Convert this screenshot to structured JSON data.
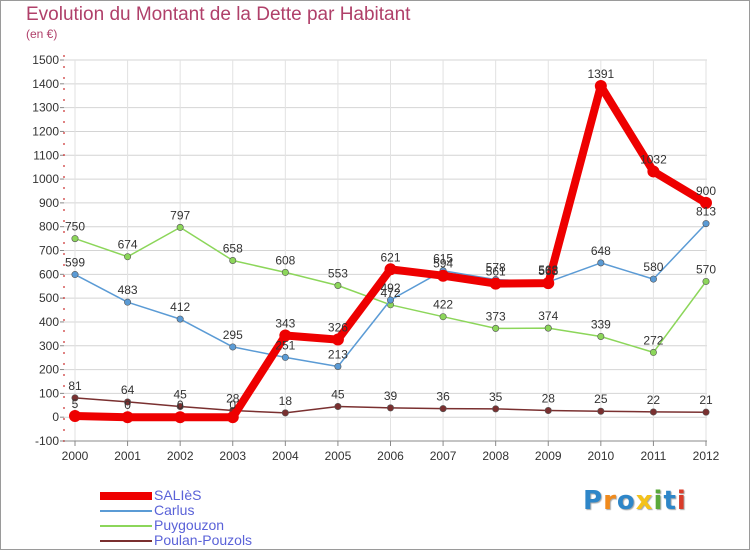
{
  "title": "Evolution du Montant de la Dette par Habitant",
  "subtitle": "(en €)",
  "logo": {
    "text": "Proxiti",
    "colors": [
      "#2e86c8",
      "#f08a1c",
      "#2e86c8",
      "#f4c21a",
      "#59a83a",
      "#2e86c8",
      "#d93c2a"
    ]
  },
  "chart_data": {
    "type": "line",
    "x": [
      "2000",
      "2001",
      "2002",
      "2003",
      "2004",
      "2005",
      "2006",
      "2007",
      "2008",
      "2009",
      "2010",
      "2011",
      "2012"
    ],
    "ylim": [
      -100,
      1500
    ],
    "yticks": [
      -100,
      0,
      100,
      200,
      300,
      400,
      500,
      600,
      700,
      800,
      900,
      1000,
      1100,
      1200,
      1300,
      1400,
      1500
    ],
    "grid": true,
    "legend": "bottom-left",
    "series": [
      {
        "name": "Poulan-Pouzols",
        "color": "#7a3030",
        "values": [
          81,
          64,
          45,
          28,
          18,
          45,
          39,
          36,
          35,
          28,
          25,
          22,
          21
        ],
        "labels": [
          "81",
          "64",
          "45",
          "28",
          "18",
          "45",
          "39",
          "36",
          "35",
          "28",
          "25",
          "22",
          "21"
        ]
      },
      {
        "name": "Puygouzon",
        "color": "#8cd65a",
        "values": [
          750,
          674,
          797,
          658,
          608,
          553,
          472,
          422,
          373,
          374,
          339,
          272,
          570
        ],
        "labels": [
          "750",
          "674",
          "797",
          "658",
          "608",
          "553",
          "472",
          "422",
          "373",
          "374",
          "339",
          "272",
          "570"
        ]
      },
      {
        "name": "Carlus",
        "color": "#5b9bd5",
        "values": [
          599,
          483,
          412,
          295,
          251,
          213,
          492,
          615,
          578,
          568,
          648,
          580,
          813
        ],
        "labels": [
          "599",
          "483",
          "412",
          "295",
          "251",
          "213",
          "492",
          "615",
          "578",
          "568",
          "648",
          "580",
          "813"
        ]
      },
      {
        "name": "SALIèS",
        "color": "#ee0000",
        "values": [
          5,
          0,
          0,
          0,
          343,
          326,
          621,
          594,
          561,
          563,
          1391,
          1032,
          900
        ],
        "labels": [
          "5",
          "0",
          "0",
          "0",
          "343",
          "326",
          "621",
          "594",
          "561",
          "563",
          "1391",
          "1032",
          "900"
        ]
      }
    ]
  }
}
